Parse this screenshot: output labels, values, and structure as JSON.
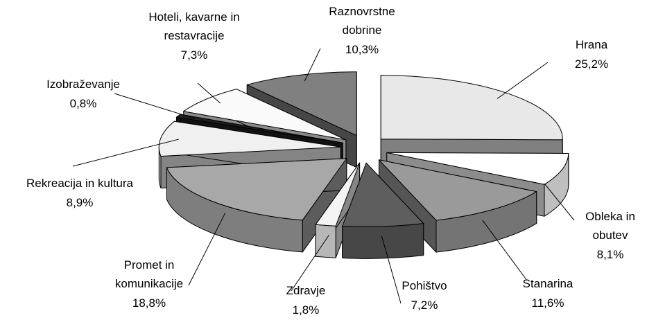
{
  "chart_data": {
    "type": "pie3d",
    "categories": [
      "Hrana",
      "Obleka in\nobutev",
      "Stanarina",
      "Pohištvo",
      "Zdravje",
      "Promet in\nkomunikacije",
      "Rekreacija in kultura",
      "Izobraževanje",
      "Hoteli, kavarne in\nrestavracije",
      "Raznovrstne\ndobrine"
    ],
    "values": [
      25.2,
      8.1,
      11.6,
      7.2,
      1.8,
      18.8,
      8.9,
      0.8,
      7.3,
      10.3
    ],
    "value_labels": [
      "25,2%",
      "8,1%",
      "11,6%",
      "7,2%",
      "1,8%",
      "18,8%",
      "8,9%",
      "0,8%",
      "7,3%",
      "10,3%"
    ],
    "colors": [
      "#e8e8e8",
      "#ffffff",
      "#9a9a9a",
      "#5e5e5e",
      "#f4f4f4",
      "#a8a8a8",
      "#f0f0f0",
      "#202020",
      "#fafafa",
      "#808080"
    ]
  }
}
